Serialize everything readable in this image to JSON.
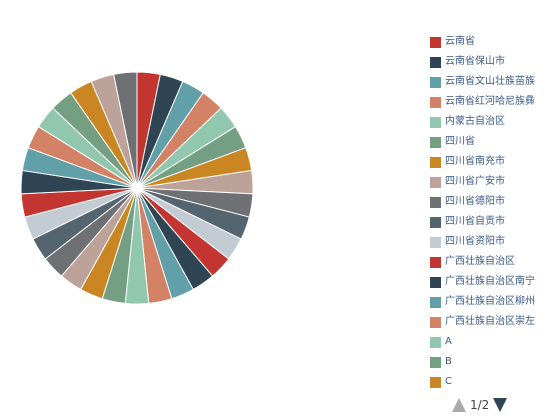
{
  "chart_data": {
    "type": "pie",
    "labels": [
      "云南省",
      "云南省保山市",
      "云南省文山壮族苗族",
      "云南省红河哈尼族彝",
      "内蒙古自治区",
      "四川省",
      "四川省南充市",
      "四川省广安市",
      "四川省德阳市",
      "四川省自贡市",
      "四川省资阳市",
      "广西壮族自治区",
      "广西壮族自治区南宁",
      "广西壮族自治区柳州",
      "广西壮族自治区崇左",
      "A",
      "B",
      "C",
      "",
      "",
      "",
      "",
      "",
      "",
      "",
      "",
      "",
      "",
      "",
      "",
      ""
    ],
    "values": [
      1,
      1,
      1,
      1,
      1,
      1,
      1,
      1,
      1,
      1,
      1,
      1,
      1,
      1,
      1,
      1,
      1,
      1,
      1,
      1,
      1,
      1,
      1,
      1,
      1,
      1,
      1,
      1,
      1,
      1,
      1
    ],
    "colors": [
      "#c23531",
      "#2f4554",
      "#61a0a8",
      "#d48265",
      "#91c7ae",
      "#749f83",
      "#ca8622",
      "#bda29a",
      "#6e7074",
      "#546570",
      "#c4ccd3"
    ],
    "legend_position": "right",
    "legend_visible_count": 18
  },
  "pager": {
    "text": "1/2",
    "prev_icon": "triangle-up-icon",
    "next_icon": "triangle-down-icon"
  }
}
